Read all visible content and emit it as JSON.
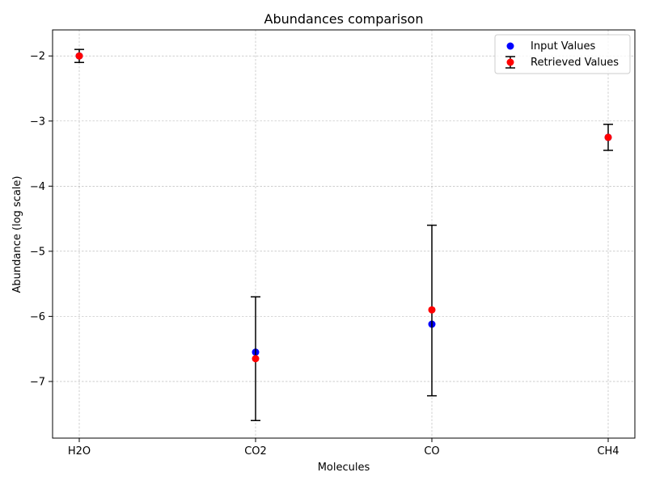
{
  "chart_data": {
    "type": "scatter",
    "title": "Abundances comparison",
    "xlabel": "Molecules",
    "ylabel": "Abundance (log scale)",
    "categories": [
      "H2O",
      "CO2",
      "CO",
      "CH4"
    ],
    "ylim": [
      -7.87,
      -1.6
    ],
    "yticks": [
      -7,
      -6,
      -5,
      -4,
      -3,
      -2
    ],
    "ytick_labels": [
      "−7",
      "−6",
      "−5",
      "−4",
      "−3",
      "−2"
    ],
    "grid": true,
    "legend_position": "upper right",
    "series": [
      {
        "name": "Input Values",
        "marker": "circle",
        "color": "#0000ff",
        "values": [
          -2.0,
          -6.55,
          -6.12,
          -3.25
        ]
      },
      {
        "name": "Retrieved Values",
        "marker": "circle",
        "color": "#ff0000",
        "errorbar_color": "#000000",
        "values": [
          -2.0,
          -6.65,
          -5.9,
          -3.25
        ],
        "error_low": [
          -2.1,
          -7.6,
          -7.22,
          -3.45
        ],
        "error_high": [
          -1.9,
          -5.7,
          -4.6,
          -3.05
        ]
      }
    ]
  }
}
